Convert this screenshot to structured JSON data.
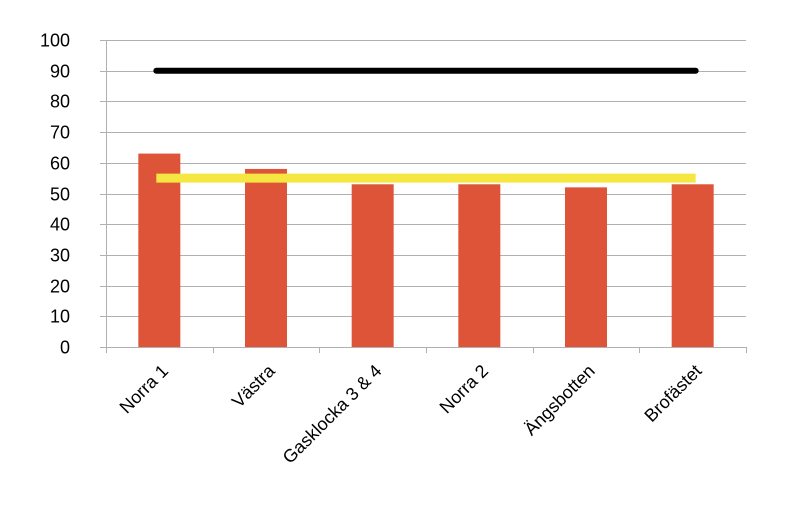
{
  "chart_data": {
    "type": "bar",
    "categories": [
      "Norra 1",
      "Västra",
      "Gasklocka 3 & 4",
      "Norra 2",
      "Ängsbotten",
      "Brofästet"
    ],
    "series": [
      {
        "values": [
          63,
          58,
          53,
          53,
          52,
          53
        ],
        "color": "#dd5438"
      },
      {
        "type": "line",
        "values": [
          90,
          90,
          90,
          90,
          90,
          90
        ],
        "color": "#000000"
      },
      {
        "type": "line",
        "values": [
          55,
          55,
          55,
          55,
          55,
          55
        ],
        "color": "#f5e642"
      }
    ],
    "yticks": [
      "0",
      "10",
      "20",
      "30",
      "40",
      "50",
      "60",
      "70",
      "80",
      "90",
      "100"
    ],
    "ylim": [
      0,
      100
    ],
    "grid": true,
    "gridColor": "#b0b0b0",
    "title": "",
    "xlabel": "",
    "ylabel": ""
  }
}
